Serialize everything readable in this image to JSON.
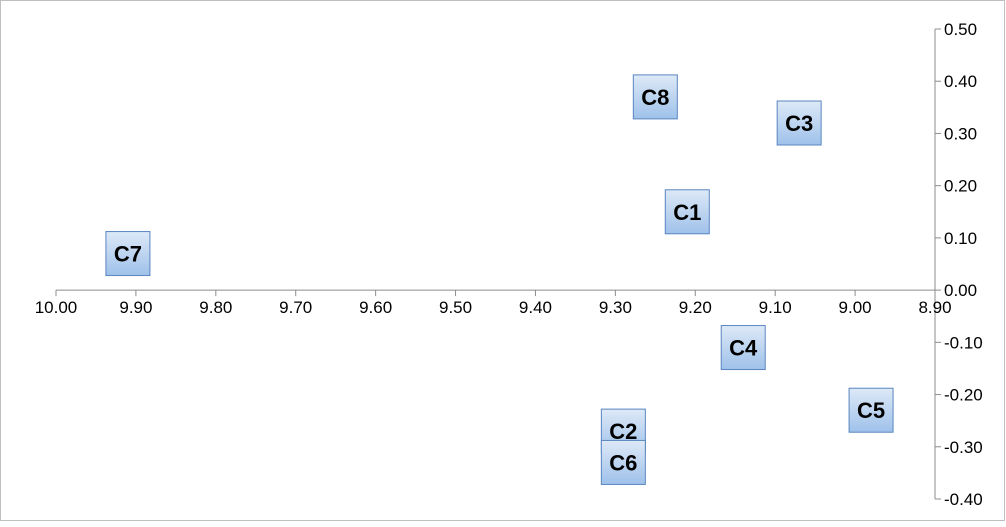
{
  "chart_data": {
    "type": "scatter",
    "title": "",
    "xlabel": "",
    "ylabel": "",
    "xlim": [
      8.9,
      10.0
    ],
    "ylim": [
      -0.4,
      0.5
    ],
    "x_reversed": true,
    "x_ticks": [
      "10.00",
      "9.90",
      "9.80",
      "9.70",
      "9.60",
      "9.50",
      "9.40",
      "9.30",
      "9.20",
      "9.10",
      "9.00",
      "8.90"
    ],
    "y_ticks": [
      "0.50",
      "0.40",
      "0.30",
      "0.20",
      "0.10",
      "0.00",
      "-0.10",
      "-0.20",
      "-0.30",
      "-0.40"
    ],
    "y_axis_position": "right",
    "grid": false,
    "legend": "none",
    "points": [
      {
        "label": "C1",
        "x": 9.21,
        "y": 0.15
      },
      {
        "label": "C2",
        "x": 9.29,
        "y": -0.27
      },
      {
        "label": "C3",
        "x": 9.07,
        "y": 0.32
      },
      {
        "label": "C4",
        "x": 9.14,
        "y": -0.11
      },
      {
        "label": "C5",
        "x": 8.98,
        "y": -0.23
      },
      {
        "label": "C6",
        "x": 9.29,
        "y": -0.33
      },
      {
        "label": "C7",
        "x": 9.91,
        "y": 0.07
      },
      {
        "label": "C8",
        "x": 9.25,
        "y": 0.37
      }
    ],
    "colors": {
      "marker_top": "#dde9f7",
      "marker_bottom": "#9fc1ea",
      "marker_border": "#5a86c0",
      "axis": "#8c8c8c"
    }
  }
}
